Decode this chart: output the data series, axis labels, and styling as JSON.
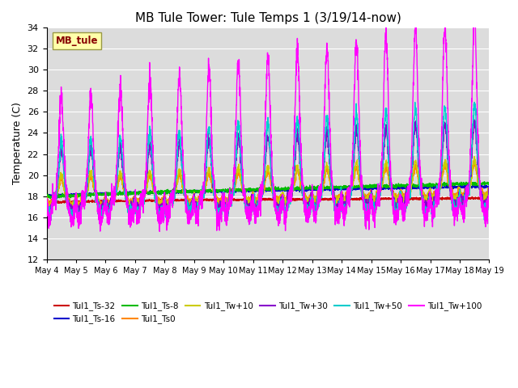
{
  "title": "MB Tule Tower: Tule Temps 1 (3/19/14-now)",
  "ylabel": "Temperature (C)",
  "ylim": [
    12,
    34
  ],
  "yticks": [
    12,
    14,
    16,
    18,
    20,
    22,
    24,
    26,
    28,
    30,
    32,
    34
  ],
  "plot_bg_color": "#dcdcdc",
  "grid_color": "white",
  "x_tick_labels": [
    "May 4",
    "May 5",
    "May 6",
    "May 7",
    "May 8",
    "May 9",
    "May 10",
    "May 11",
    "May 12",
    "May 13",
    "May 14",
    "May 15",
    "May 16",
    "May 17",
    "May 18",
    "May 19"
  ],
  "watermark_text": "MB_tule",
  "watermark_bg": "#ffffaa",
  "watermark_fg": "#880000",
  "series": [
    {
      "label": "Tul1_Ts-32",
      "color": "#cc0000",
      "base": 17.55,
      "trend": 0.018,
      "amp": 0.0,
      "night_drop": 0.0
    },
    {
      "label": "Tul1_Ts-16",
      "color": "#0000cc",
      "base": 18.2,
      "trend": 0.05,
      "amp": 0.0,
      "night_drop": 0.0
    },
    {
      "label": "Tul1_Ts-8",
      "color": "#00bb00",
      "base": 18.0,
      "trend": 0.075,
      "amp": 0.0,
      "night_drop": 0.0
    },
    {
      "label": "Tul1_Ts0",
      "color": "#ff8800",
      "base": 17.8,
      "trend": 0.06,
      "amp": 2.0,
      "night_drop": 1.2
    },
    {
      "label": "Tul1_Tw+10",
      "color": "#cccc00",
      "base": 17.8,
      "trend": 0.055,
      "amp": 2.5,
      "night_drop": 1.5
    },
    {
      "label": "Tul1_Tw+30",
      "color": "#8800cc",
      "base": 17.7,
      "trend": 0.045,
      "amp": 5.0,
      "night_drop": 2.5
    },
    {
      "label": "Tul1_Tw+50",
      "color": "#00cccc",
      "base": 17.5,
      "trend": 0.04,
      "amp": 6.0,
      "night_drop": 2.5
    },
    {
      "label": "Tul1_Tw+100",
      "color": "#ff00ff",
      "base": 17.5,
      "trend": 0.035,
      "amp": 10.0,
      "night_drop": 3.0
    }
  ],
  "legend_order": [
    "Tul1_Ts-32",
    "Tul1_Ts-16",
    "Tul1_Ts-8",
    "Tul1_Ts0",
    "Tul1_Tw+10",
    "Tul1_Tw+30",
    "Tul1_Tw+50",
    "Tul1_Tw+100"
  ]
}
